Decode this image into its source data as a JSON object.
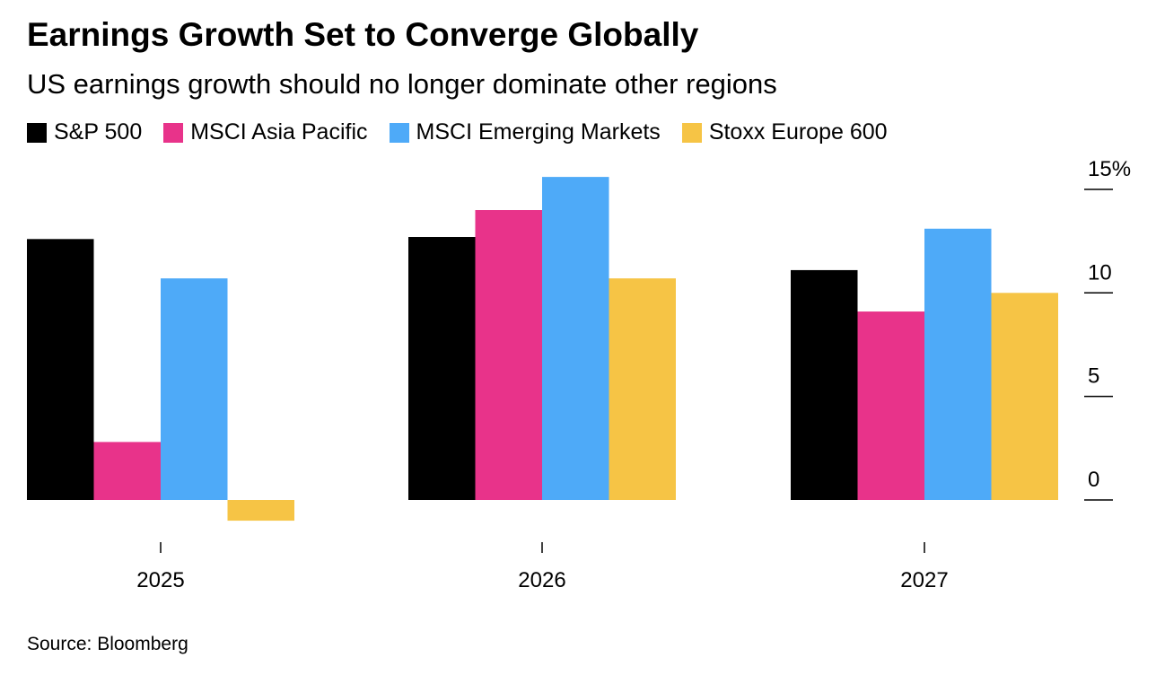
{
  "title": "Earnings Growth Set to Converge Globally",
  "subtitle": "US earnings growth should no longer dominate other regions",
  "source": "Source: Bloomberg",
  "chart_data": {
    "type": "bar",
    "title": "Earnings Growth Set to Converge Globally",
    "subtitle": "US earnings growth should no longer dominate other regions",
    "categories": [
      "2025",
      "2026",
      "2027"
    ],
    "series": [
      {
        "name": "S&P 500",
        "color": "#000000",
        "values": [
          12.6,
          12.7,
          11.1
        ]
      },
      {
        "name": "MSCI Asia Pacific",
        "color": "#e8338a",
        "values": [
          2.8,
          14.0,
          9.1
        ]
      },
      {
        "name": "MSCI Emerging Markets",
        "color": "#4eaaf8",
        "values": [
          10.7,
          15.6,
          13.1
        ]
      },
      {
        "name": "Stoxx Europe 600",
        "color": "#f6c445",
        "values": [
          -1.0,
          10.7,
          10.0
        ]
      }
    ],
    "yticks": [
      0,
      5,
      10,
      15
    ],
    "ytick_labels": [
      "0",
      "5",
      "10",
      "15%"
    ],
    "ylim": [
      -1.5,
      16
    ],
    "xlabel": "",
    "ylabel": "",
    "legend": "top-left",
    "grid": false
  }
}
